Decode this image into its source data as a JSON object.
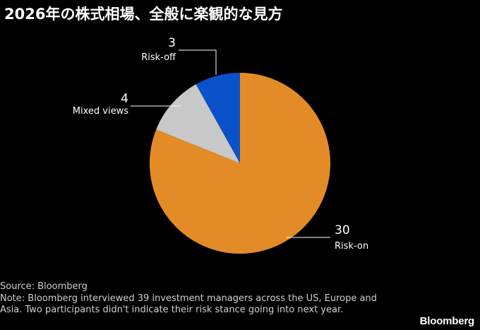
{
  "title": "2026年の株式相場、全般に楽観的な見方",
  "chart_data": {
    "type": "pie",
    "slices": [
      {
        "label": "Risk-on",
        "value": 30,
        "color": "#E38C27"
      },
      {
        "label": "Mixed views",
        "value": 4,
        "color": "#C8C8C8"
      },
      {
        "label": "Risk-off",
        "value": 3,
        "color": "#0A52C9"
      }
    ],
    "start": "12 o'clock",
    "direction": "clockwise"
  },
  "footer": {
    "source": "Source: Bloomberg",
    "note": "Note: Bloomberg interviewed 39 investment managers across the US, Europe and Asia. Two participants didn't indicate their risk stance going into next year."
  },
  "logo": "Bloomberg"
}
